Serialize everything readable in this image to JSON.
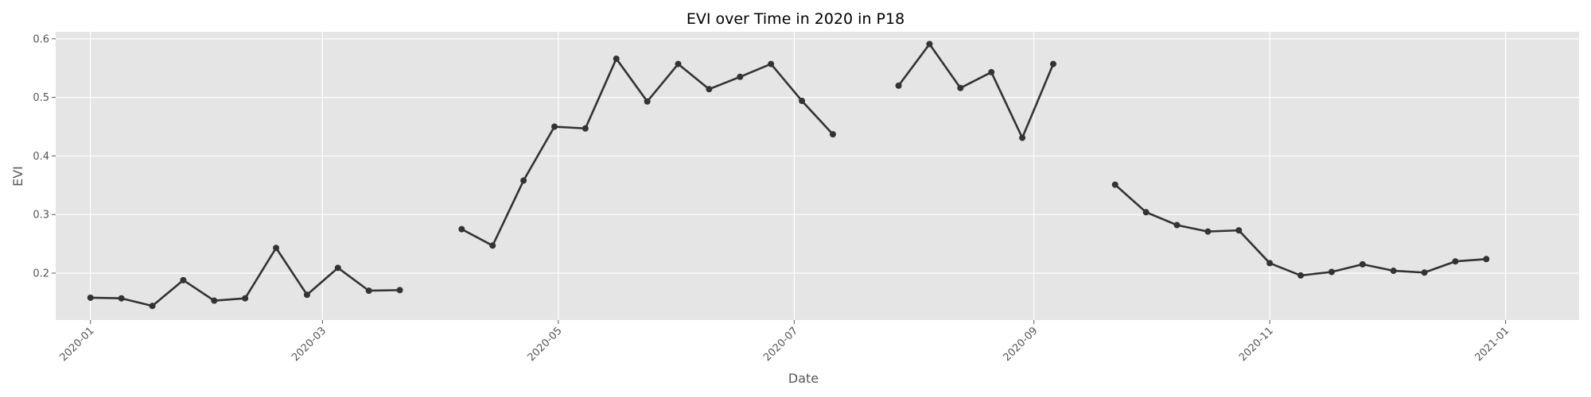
{
  "chart_data": {
    "type": "line",
    "title": "EVI over Time in 2020 in P18",
    "xlabel": "Date",
    "ylabel": "EVI",
    "xlim": [
      "2019-12-23",
      "2021-01-20"
    ],
    "ylim": [
      0.12,
      0.612
    ],
    "xticks": [
      "2020-01",
      "2020-03",
      "2020-05",
      "2020-07",
      "2020-09",
      "2020-11",
      "2021-01"
    ],
    "yticks": [
      0.2,
      0.3,
      0.4,
      0.5,
      0.6
    ],
    "grid": true,
    "background": "#e5e5e5",
    "line_color": "#333333",
    "series": [
      {
        "points": [
          [
            "2020-01-01",
            0.158
          ],
          [
            "2020-01-09",
            0.157
          ],
          [
            "2020-01-17",
            0.144
          ],
          [
            "2020-01-25",
            0.188
          ],
          [
            "2020-02-02",
            0.153
          ],
          [
            "2020-02-10",
            0.157
          ],
          [
            "2020-02-18",
            0.243
          ],
          [
            "2020-02-26",
            0.163
          ],
          [
            "2020-03-05",
            0.209
          ],
          [
            "2020-03-13",
            0.17
          ],
          [
            "2020-03-21",
            0.171
          ]
        ]
      },
      {
        "points": [
          [
            "2020-04-06",
            0.275
          ],
          [
            "2020-04-14",
            0.247
          ],
          [
            "2020-04-22",
            0.358
          ],
          [
            "2020-04-30",
            0.45
          ],
          [
            "2020-05-08",
            0.447
          ],
          [
            "2020-05-16",
            0.566
          ],
          [
            "2020-05-24",
            0.493
          ],
          [
            "2020-06-01",
            0.557
          ],
          [
            "2020-06-09",
            0.514
          ],
          [
            "2020-06-17",
            0.535
          ],
          [
            "2020-06-25",
            0.557
          ],
          [
            "2020-07-03",
            0.494
          ],
          [
            "2020-07-11",
            0.437
          ]
        ]
      },
      {
        "points": [
          [
            "2020-07-28",
            0.52
          ],
          [
            "2020-08-05",
            0.591
          ],
          [
            "2020-08-13",
            0.516
          ],
          [
            "2020-08-21",
            0.543
          ],
          [
            "2020-08-29",
            0.431
          ],
          [
            "2020-09-06",
            0.557
          ]
        ]
      },
      {
        "points": [
          [
            "2020-09-22",
            0.351
          ],
          [
            "2020-09-30",
            0.304
          ],
          [
            "2020-10-08",
            0.282
          ],
          [
            "2020-10-16",
            0.271
          ],
          [
            "2020-10-24",
            0.273
          ],
          [
            "2020-11-01",
            0.217
          ],
          [
            "2020-11-09",
            0.196
          ],
          [
            "2020-11-17",
            0.202
          ],
          [
            "2020-11-25",
            0.215
          ],
          [
            "2020-12-03",
            0.204
          ],
          [
            "2020-12-11",
            0.201
          ],
          [
            "2020-12-19",
            0.22
          ],
          [
            "2020-12-27",
            0.224
          ]
        ]
      }
    ]
  }
}
